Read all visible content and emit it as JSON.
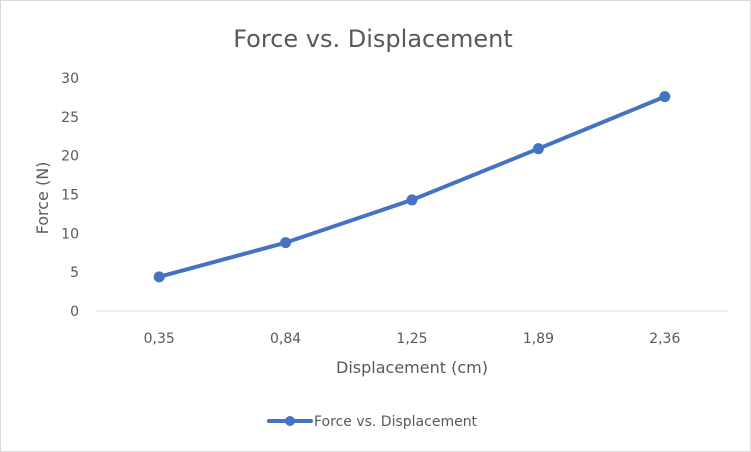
{
  "chart_data": {
    "type": "line",
    "title": "Force vs. Displacement",
    "xlabel": "Displacement (cm)",
    "ylabel": "Force (N)",
    "categories": [
      "0,35",
      "0,84",
      "1,25",
      "1,89",
      "2,36"
    ],
    "series": [
      {
        "name": "Force vs. Displacement",
        "values": [
          4.4,
          8.8,
          14.3,
          20.9,
          27.6
        ],
        "color": "#4472c4"
      }
    ],
    "ylim": [
      0,
      30
    ],
    "yticks": [
      0,
      5,
      10,
      15,
      20,
      25,
      30
    ],
    "grid": false,
    "legend": "bottom",
    "axis_color": "#d9d9d9",
    "text_color": "#595959"
  }
}
